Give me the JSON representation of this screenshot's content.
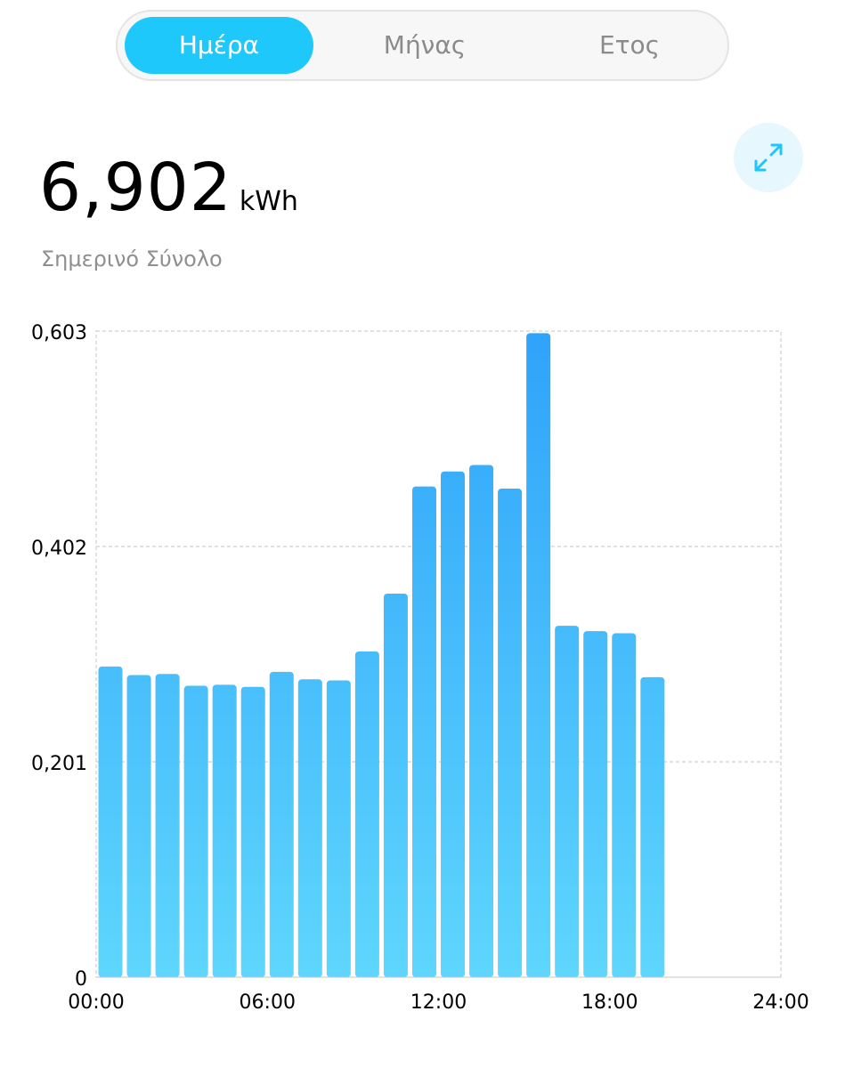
{
  "tabs": [
    {
      "label": "Ημέρα",
      "active": true
    },
    {
      "label": "Μήνας",
      "active": false
    },
    {
      "label": "Ετος",
      "active": false
    }
  ],
  "summary": {
    "value": "6,902",
    "unit": "kWh",
    "label": "Σημερινό Σύνολο"
  },
  "expand_button": {
    "icon": "expand-arrows-icon"
  },
  "colors": {
    "accent": "#1ec8fb",
    "bar_top": "#2fa3fa",
    "bar_bottom": "#5ed6fd",
    "grid": "#c4c4c4",
    "icon": "#1ec8fb"
  },
  "chart_data": {
    "type": "bar",
    "title": "",
    "xlabel": "",
    "ylabel": "",
    "ylim": [
      0,
      0.603
    ],
    "y_ticks": [
      0,
      0.201,
      0.402,
      0.603
    ],
    "y_tick_labels": [
      "0",
      "0,201",
      "0,402",
      "0,603"
    ],
    "x_ticks": [
      0,
      6,
      12,
      18,
      24
    ],
    "x_tick_labels": [
      "00:00",
      "06:00",
      "12:00",
      "18:00",
      "24:00"
    ],
    "xlim": [
      0,
      24
    ],
    "categories": [
      "00:00",
      "01:00",
      "02:00",
      "03:00",
      "04:00",
      "05:00",
      "06:00",
      "07:00",
      "08:00",
      "09:00",
      "10:00",
      "11:00",
      "12:00",
      "13:00",
      "14:00",
      "15:00",
      "16:00",
      "17:00",
      "18:00",
      "19:00",
      "20:00",
      "21:00",
      "22:00",
      "23:00"
    ],
    "values": [
      0.29,
      0.282,
      0.283,
      0.272,
      0.273,
      0.271,
      0.285,
      0.278,
      0.277,
      0.304,
      0.358,
      0.458,
      0.472,
      0.478,
      0.456,
      0.601,
      0.328,
      0.323,
      0.321,
      0.28,
      null,
      null,
      null,
      null
    ],
    "grid": true
  }
}
